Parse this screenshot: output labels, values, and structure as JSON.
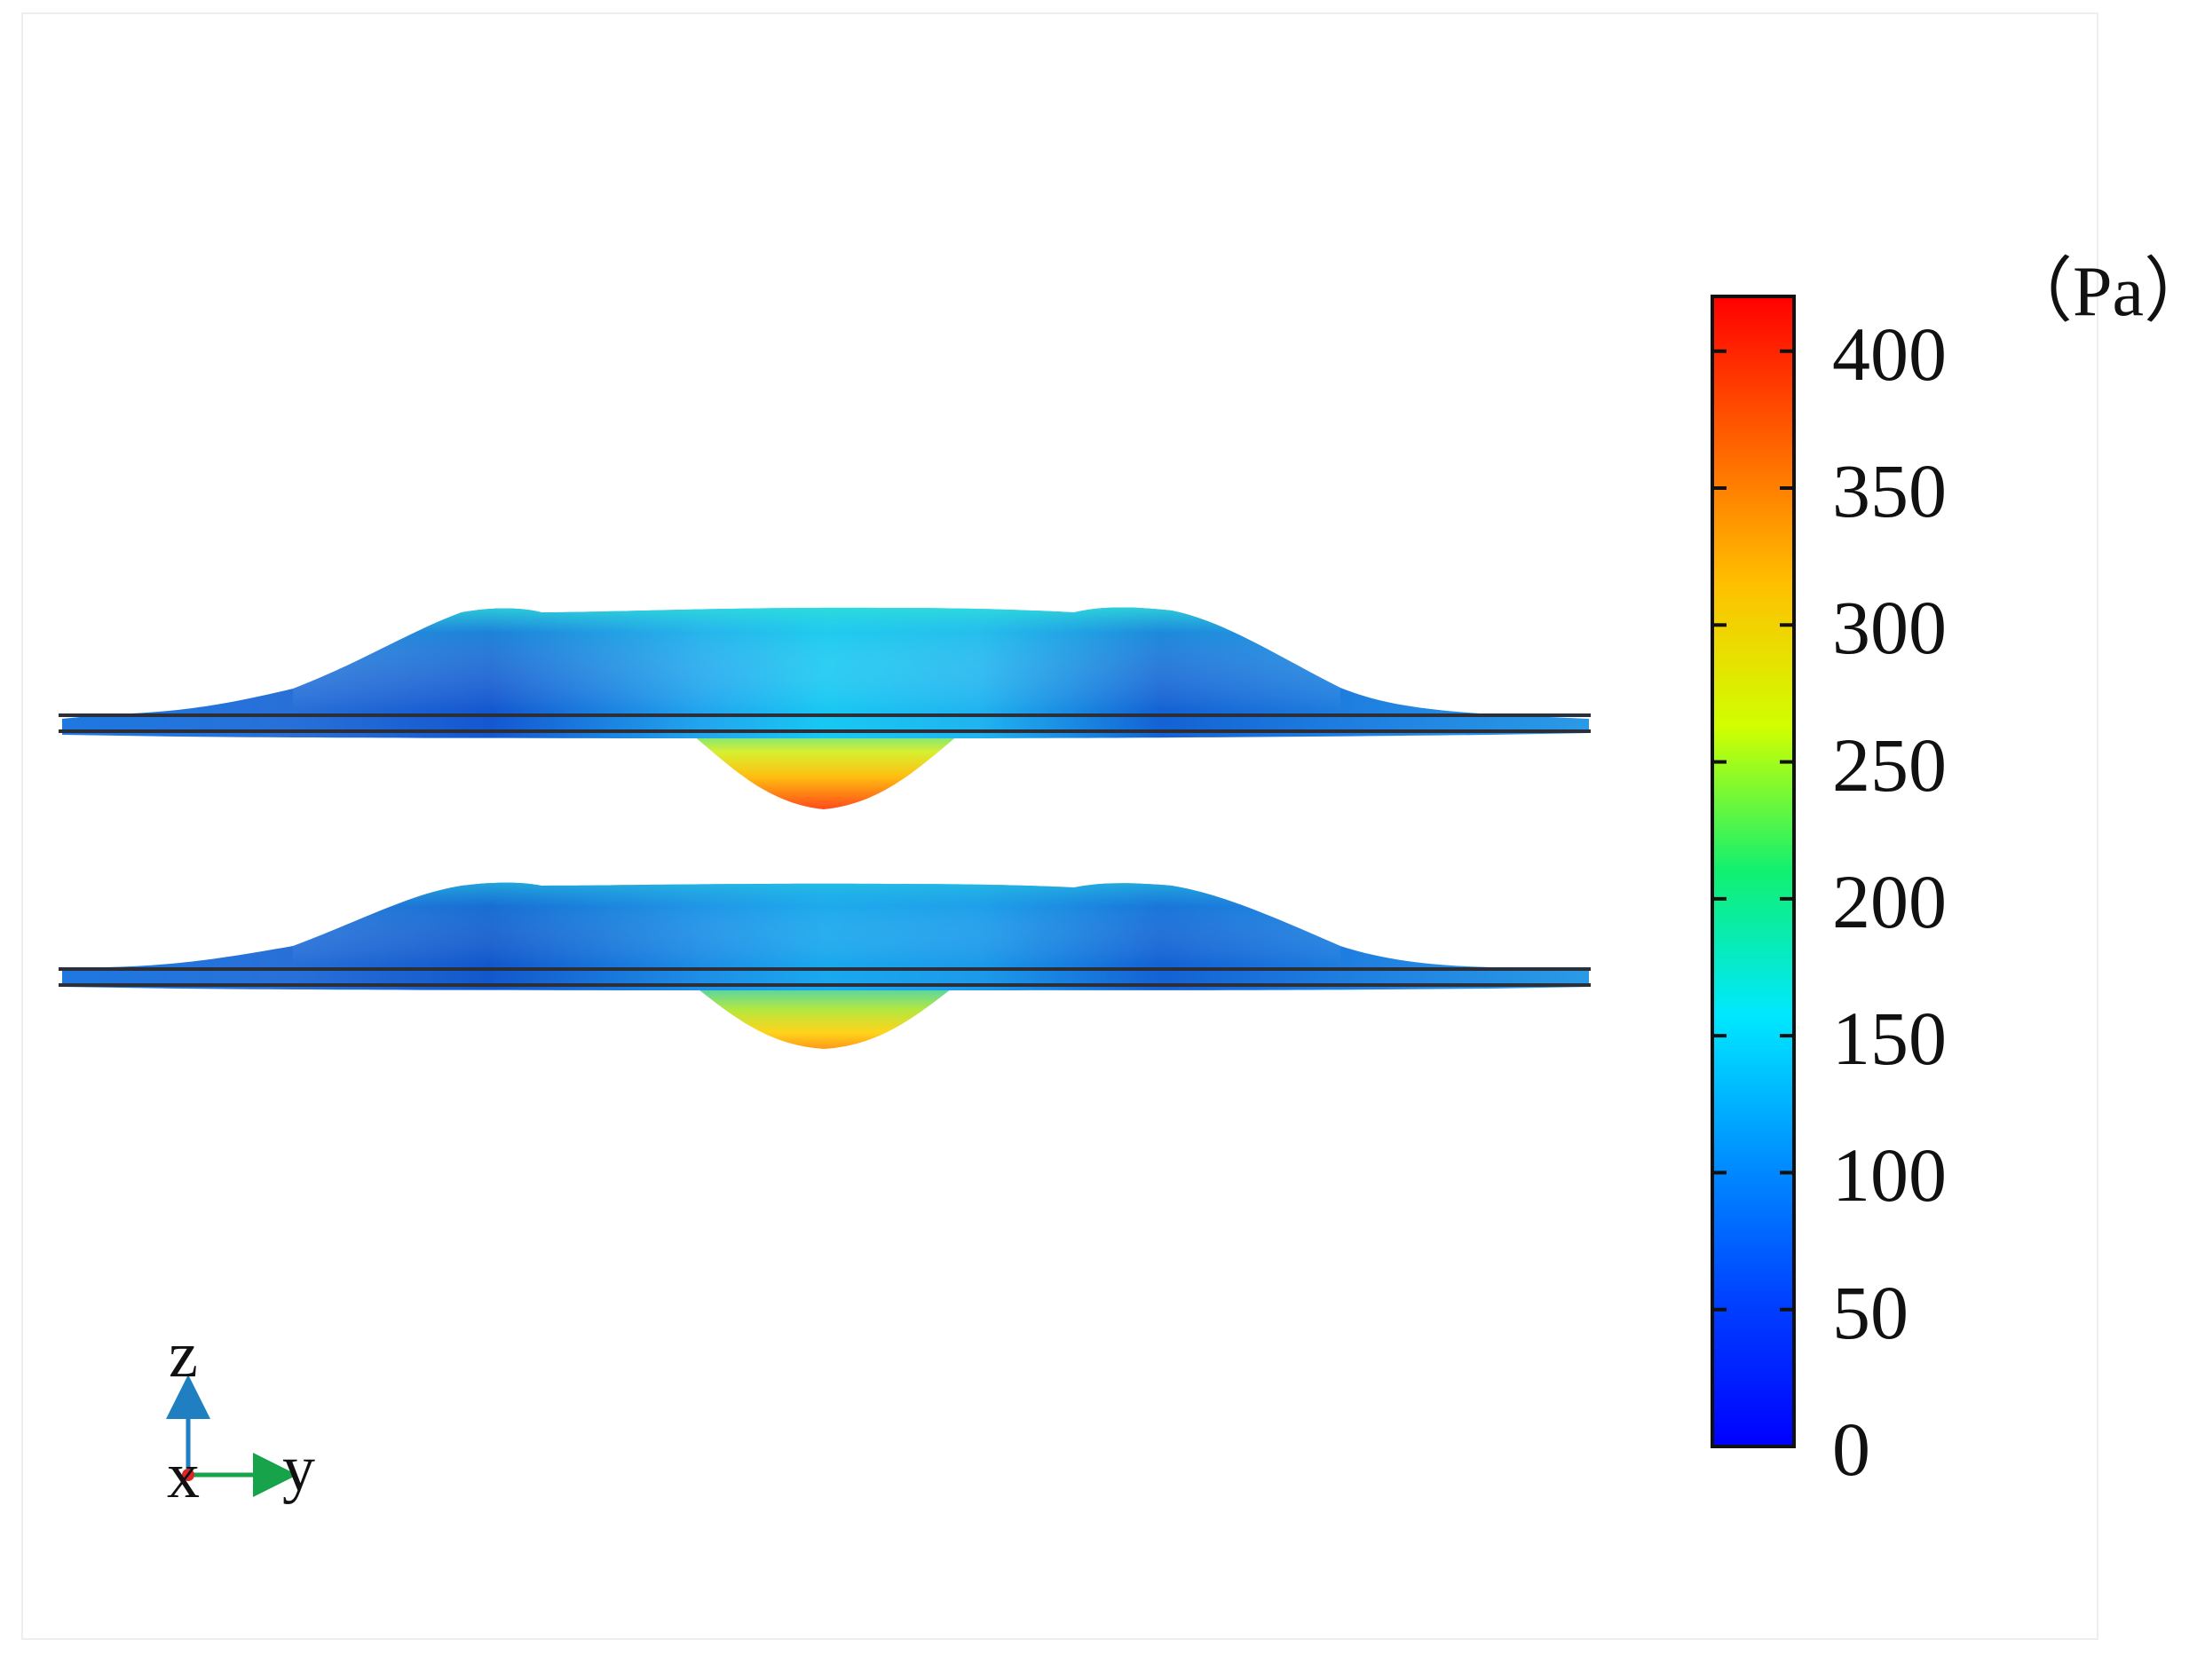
{
  "figure": {
    "description_free": true,
    "plots": [
      {
        "id": "upper-structure",
        "max_value_region": "red-orange lobe"
      },
      {
        "id": "lower-structure",
        "max_value_region": "yellow-orange lobe"
      }
    ]
  },
  "colorbar": {
    "unit": "（Pa）",
    "min": 0,
    "max": 420,
    "ticks": [
      "400",
      "350",
      "300",
      "250",
      "200",
      "150",
      "100",
      "50",
      "0"
    ],
    "tick_values": [
      400,
      350,
      300,
      250,
      200,
      150,
      100,
      50,
      0
    ],
    "colormap": "jet",
    "colors": [
      "#0000ff",
      "#0080ff",
      "#00ffff",
      "#00ff80",
      "#ffff00",
      "#ff8000",
      "#ff0000"
    ]
  },
  "axes_triad": {
    "z_label": "z",
    "y_label": "y",
    "x_label": "x",
    "z_color": "#1f7fc0",
    "y_color": "#16a34a",
    "x_color": "#dc2626"
  }
}
